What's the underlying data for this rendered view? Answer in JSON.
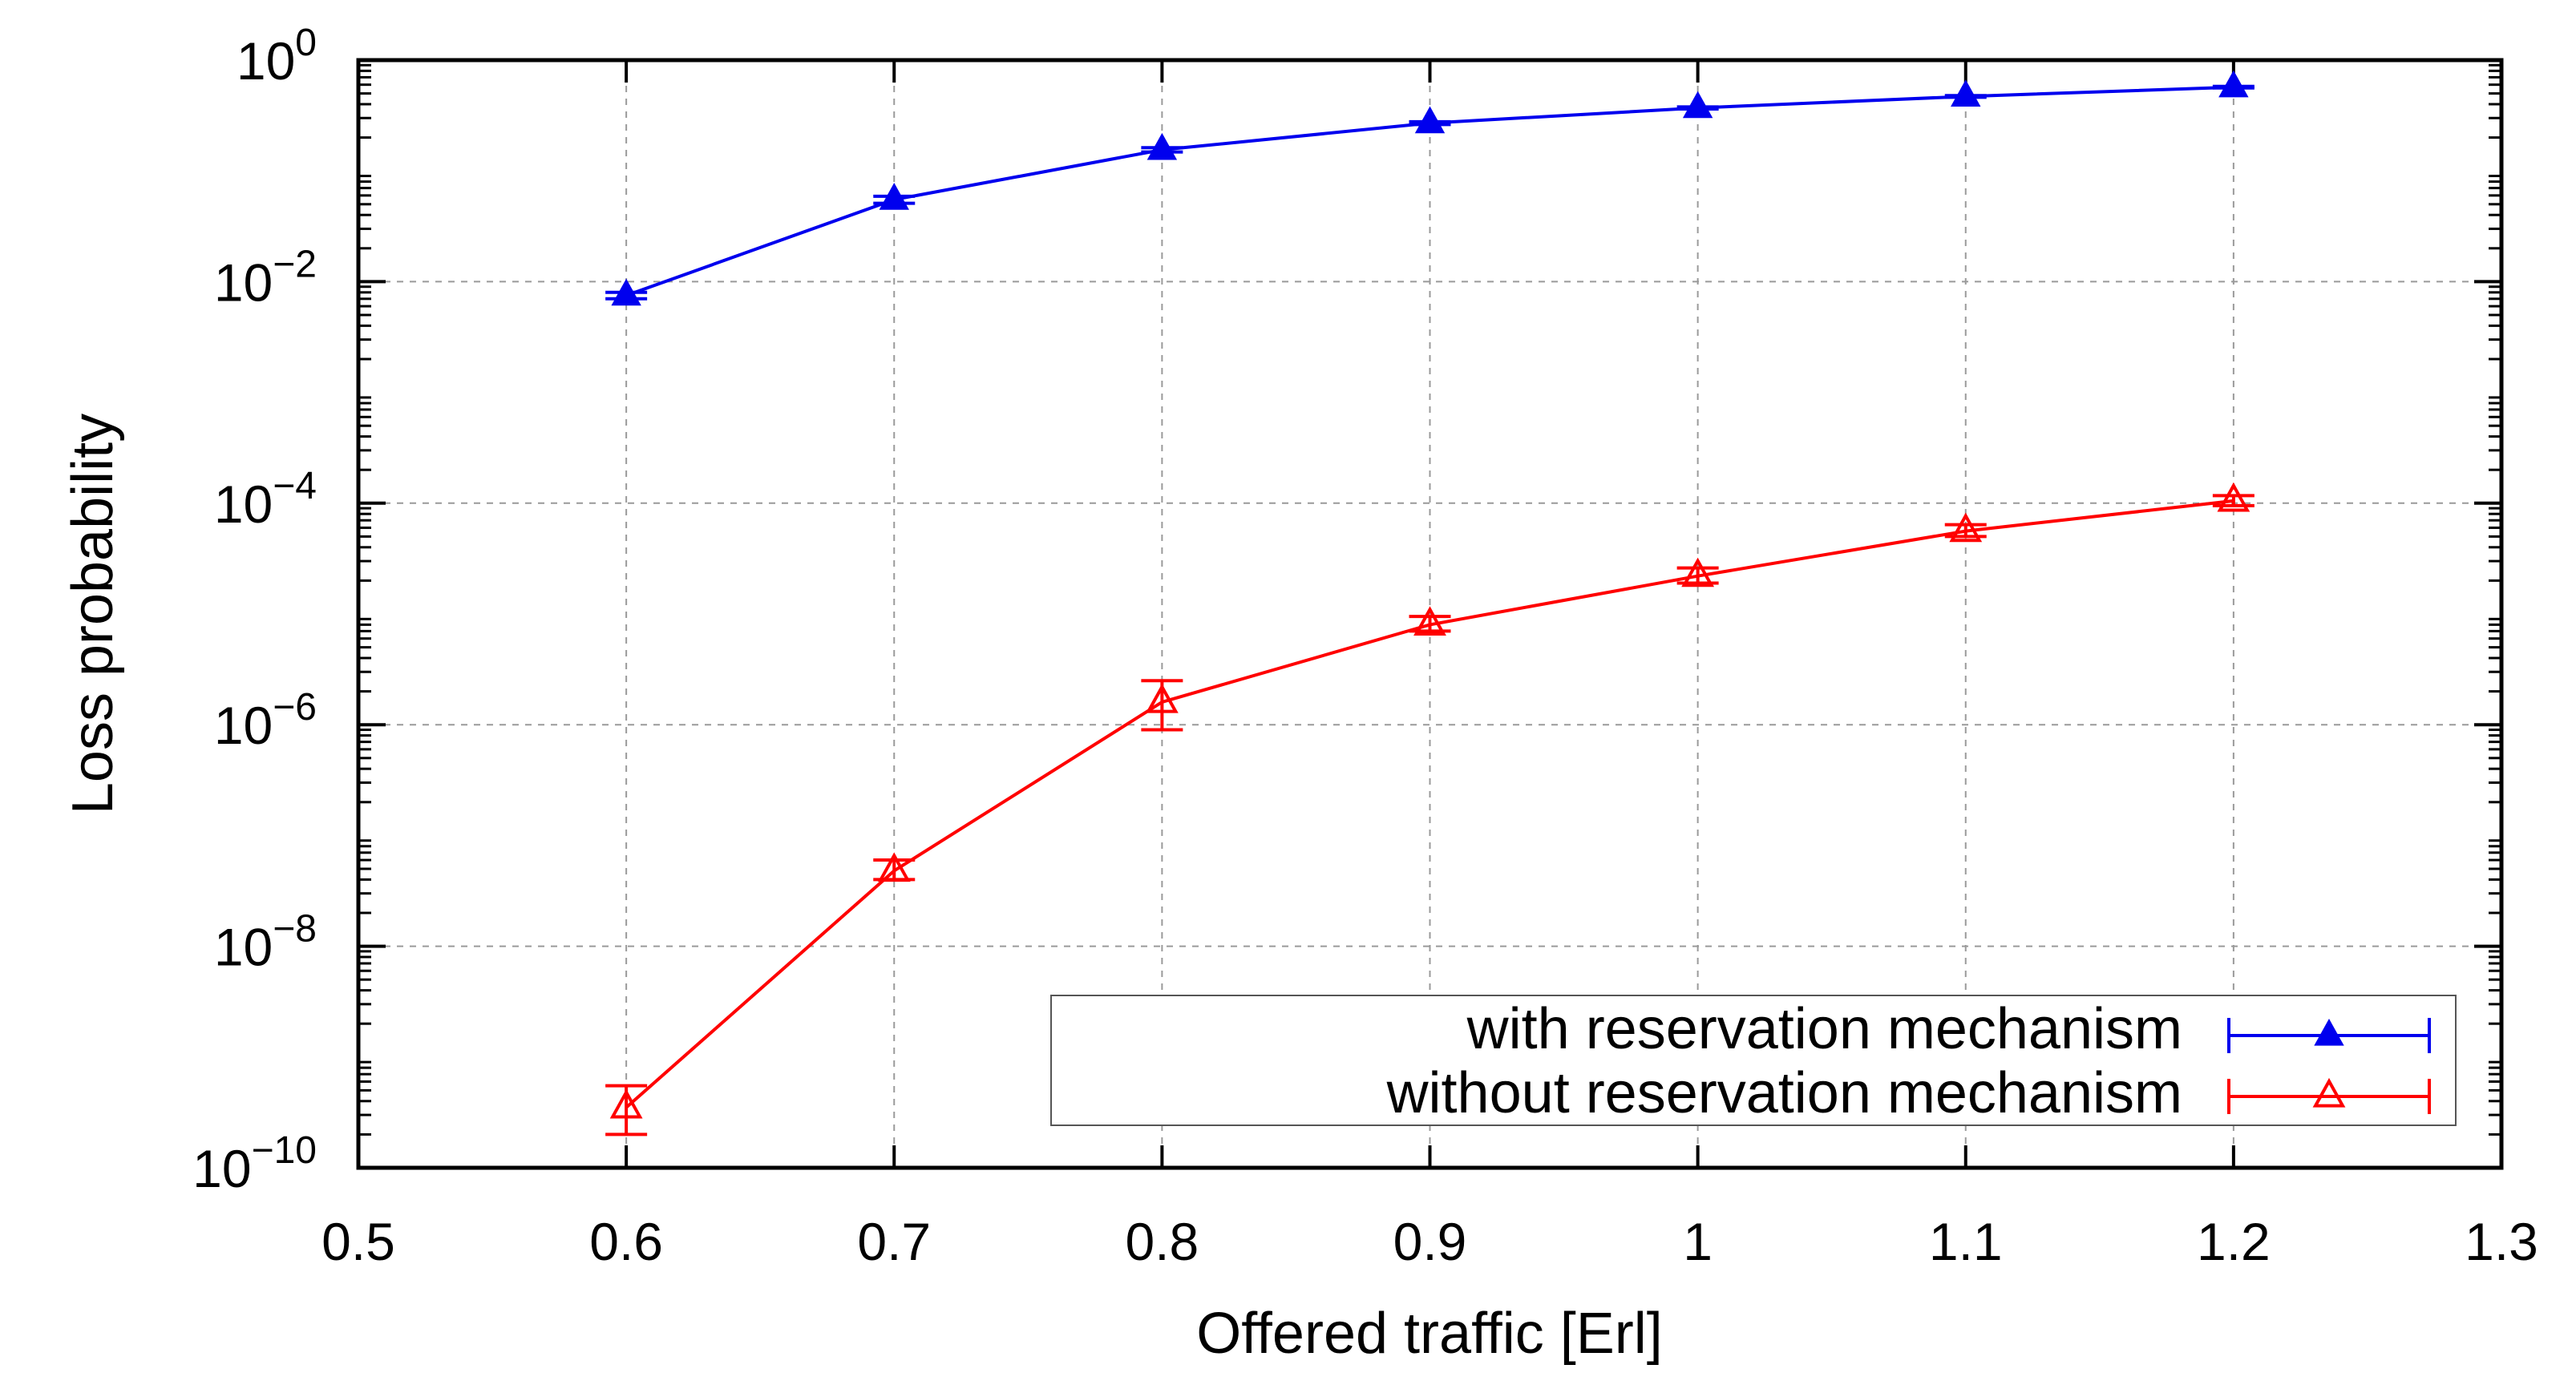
{
  "chart_data": {
    "type": "line",
    "title": "",
    "xlabel": "Offered traffic [Erl]",
    "ylabel": "Loss probability",
    "xlim": [
      0.5,
      1.3
    ],
    "ylim": [
      1e-10,
      1
    ],
    "yscale": "log",
    "grid": true,
    "legend_position": "bottom-right",
    "x_ticks": [
      "0.5",
      "0.6",
      "0.7",
      "0.8",
      "0.9",
      "1",
      "1.1",
      "1.2",
      "1.3"
    ],
    "y_ticks": [
      {
        "base": "10",
        "exp": "0",
        "value": 1
      },
      {
        "base": "10",
        "exp": "−2",
        "value": 0.01
      },
      {
        "base": "10",
        "exp": "−4",
        "value": 0.0001
      },
      {
        "base": "10",
        "exp": "−6",
        "value": 1e-06
      },
      {
        "base": "10",
        "exp": "−8",
        "value": 1e-08
      },
      {
        "base": "10",
        "exp": "−10",
        "value": 1e-10
      }
    ],
    "x": [
      0.6,
      0.7,
      0.8,
      0.9,
      1.0,
      1.1,
      1.2
    ],
    "series": [
      {
        "name": "with reservation mechanism",
        "color": "#0000ee",
        "marker": "filled-triangle",
        "values": [
          0.0075,
          0.055,
          0.155,
          0.27,
          0.37,
          0.47,
          0.57
        ],
        "err_low": [
          0.007,
          0.051,
          0.148,
          0.262,
          0.362,
          0.462,
          0.56
        ],
        "err_high": [
          0.008,
          0.059,
          0.162,
          0.278,
          0.378,
          0.478,
          0.58
        ]
      },
      {
        "name": "without reservation mechanism",
        "color": "#ff0000",
        "marker": "open-triangle",
        "values": [
          3.5e-10,
          4.8e-08,
          1.6e-06,
          8e-06,
          2.2e-05,
          5.6e-05,
          0.000105
        ],
        "err_low": [
          2e-10,
          4e-08,
          9e-07,
          7e-06,
          1.9e-05,
          5e-05,
          9.5e-05
        ],
        "err_high": [
          5.5e-10,
          6e-08,
          2.5e-06,
          9.5e-06,
          2.6e-05,
          6.4e-05,
          0.000117
        ]
      }
    ]
  }
}
